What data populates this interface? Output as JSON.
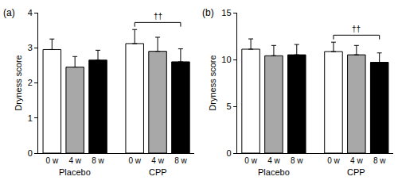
{
  "chart_data": [
    {
      "type": "bar",
      "title": "(a)",
      "y_label": "Dryness score",
      "categories": [
        "Placebo",
        "CPP"
      ],
      "series": [
        {
          "name": "0 w",
          "color": "#ffffff",
          "values": [
            2.95,
            3.12
          ],
          "errors": [
            0.3,
            0.4
          ]
        },
        {
          "name": "4 w",
          "color": "#a8a8a8",
          "values": [
            2.45,
            2.9
          ],
          "errors": [
            0.3,
            0.4
          ]
        },
        {
          "name": "8 w",
          "color": "#000000",
          "values": [
            2.65,
            2.6
          ],
          "errors": [
            0.28,
            0.37
          ]
        }
      ],
      "ylim": [
        0,
        4
      ],
      "yticks": [
        0,
        1,
        2,
        3,
        4
      ],
      "significance": [
        {
          "category": "CPP",
          "from": "0 w",
          "to": "8 w",
          "label": "††"
        }
      ]
    },
    {
      "type": "bar",
      "title": "(b)",
      "y_label": "Dryness score",
      "categories": [
        "Placebo",
        "CPP"
      ],
      "series": [
        {
          "name": "0 w",
          "color": "#ffffff",
          "values": [
            11.1,
            10.85
          ],
          "errors": [
            1.1,
            1.0
          ]
        },
        {
          "name": "4 w",
          "color": "#a8a8a8",
          "values": [
            10.4,
            10.5
          ],
          "errors": [
            1.1,
            1.0
          ]
        },
        {
          "name": "8 w",
          "color": "#000000",
          "values": [
            10.5,
            9.7
          ],
          "errors": [
            1.1,
            1.0
          ]
        }
      ],
      "ylim": [
        0,
        15
      ],
      "yticks": [
        0,
        5,
        10,
        15
      ],
      "significance": [
        {
          "category": "CPP",
          "from": "0 w",
          "to": "8 w",
          "label": "††"
        }
      ]
    }
  ]
}
